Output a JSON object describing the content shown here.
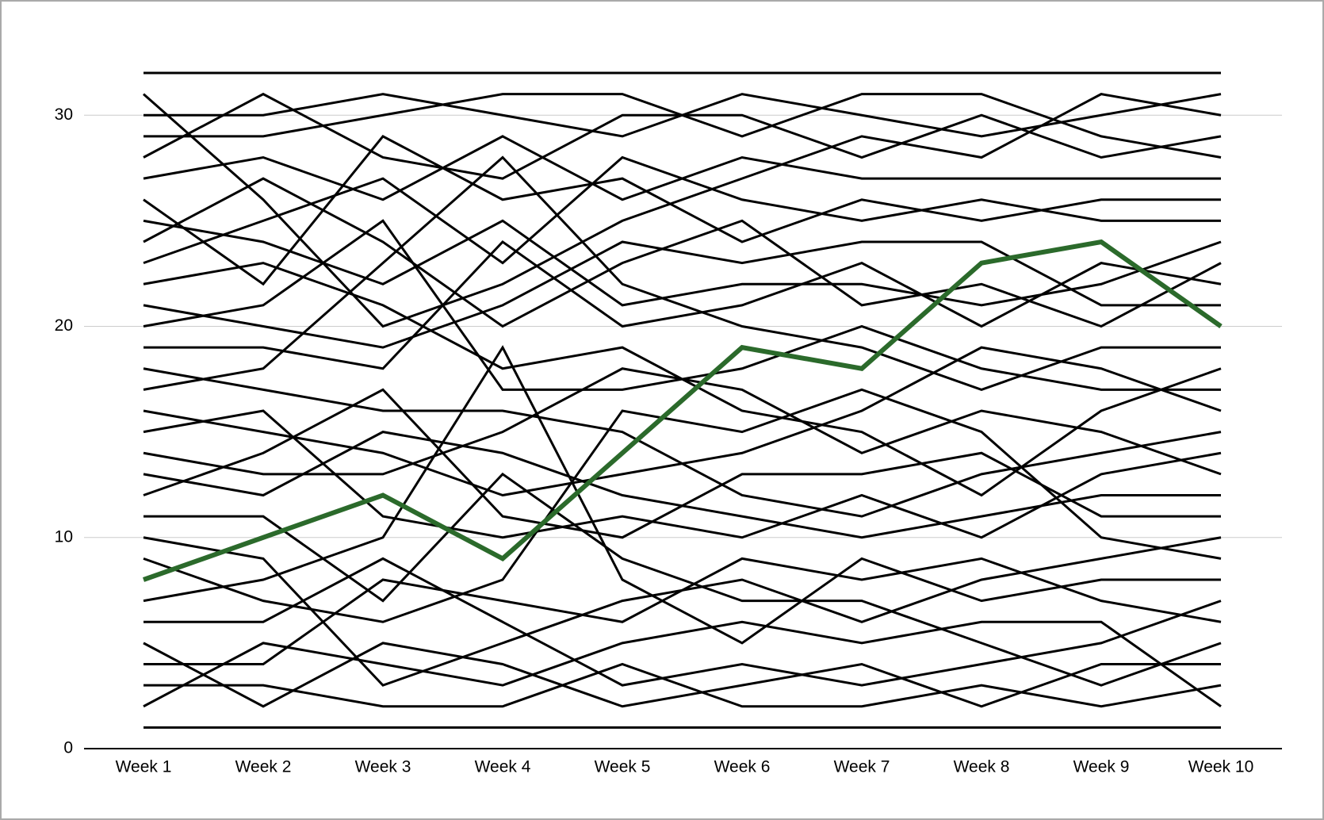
{
  "chart_data": {
    "type": "line",
    "categories": [
      "Week 1",
      "Week 2",
      "Week 3",
      "Week 4",
      "Week 5",
      "Week 6",
      "Week 7",
      "Week 8",
      "Week 9",
      "Week 10"
    ],
    "ylim": [
      0,
      32
    ],
    "yticks": [
      0,
      10,
      20,
      30
    ],
    "grid": true,
    "series": [
      {
        "color": "#000000",
        "values": [
          32,
          32,
          32,
          32,
          32,
          32,
          32,
          32,
          32,
          32
        ]
      },
      {
        "color": "#000000",
        "values": [
          31,
          26,
          20,
          22,
          25,
          27,
          29,
          28,
          31,
          30
        ]
      },
      {
        "color": "#000000",
        "values": [
          30,
          30,
          31,
          30,
          29,
          31,
          30,
          29,
          30,
          31
        ]
      },
      {
        "color": "#000000",
        "values": [
          29,
          29,
          30,
          31,
          31,
          29,
          31,
          31,
          29,
          28
        ]
      },
      {
        "color": "#000000",
        "values": [
          28,
          31,
          28,
          27,
          30,
          30,
          28,
          30,
          28,
          29
        ]
      },
      {
        "color": "#000000",
        "values": [
          27,
          28,
          26,
          29,
          26,
          28,
          27,
          27,
          27,
          27
        ]
      },
      {
        "color": "#000000",
        "values": [
          26,
          22,
          29,
          26,
          27,
          24,
          26,
          25,
          26,
          26
        ]
      },
      {
        "color": "#000000",
        "values": [
          25,
          24,
          22,
          25,
          21,
          22,
          22,
          21,
          22,
          24
        ]
      },
      {
        "color": "#000000",
        "values": [
          24,
          27,
          24,
          20,
          23,
          25,
          21,
          22,
          20,
          23
        ]
      },
      {
        "color": "#000000",
        "values": [
          23,
          25,
          27,
          23,
          28,
          26,
          25,
          26,
          25,
          25
        ]
      },
      {
        "color": "#000000",
        "values": [
          22,
          23,
          21,
          18,
          19,
          16,
          15,
          12,
          16,
          18
        ]
      },
      {
        "color": "#000000",
        "values": [
          21,
          20,
          19,
          21,
          24,
          23,
          24,
          24,
          21,
          21
        ]
      },
      {
        "color": "#000000",
        "values": [
          20,
          21,
          25,
          17,
          17,
          18,
          20,
          18,
          17,
          17
        ]
      },
      {
        "color": "#000000",
        "values": [
          19,
          19,
          18,
          24,
          20,
          21,
          23,
          20,
          23,
          22
        ]
      },
      {
        "color": "#000000",
        "values": [
          18,
          17,
          16,
          16,
          15,
          12,
          11,
          13,
          14,
          15
        ]
      },
      {
        "color": "#000000",
        "values": [
          17,
          18,
          23,
          28,
          22,
          20,
          19,
          17,
          19,
          19
        ]
      },
      {
        "color": "#000000",
        "values": [
          16,
          15,
          14,
          12,
          13,
          14,
          16,
          19,
          18,
          16
        ]
      },
      {
        "color": "#000000",
        "values": [
          15,
          16,
          11,
          10,
          11,
          10,
          12,
          10,
          13,
          14
        ]
      },
      {
        "color": "#000000",
        "values": [
          14,
          13,
          13,
          15,
          18,
          17,
          14,
          16,
          15,
          13
        ]
      },
      {
        "color": "#000000",
        "values": [
          13,
          12,
          15,
          14,
          12,
          11,
          10,
          11,
          12,
          12
        ]
      },
      {
        "color": "#000000",
        "values": [
          12,
          14,
          17,
          11,
          10,
          13,
          13,
          14,
          11,
          11
        ]
      },
      {
        "color": "#000000",
        "values": [
          11,
          11,
          7,
          13,
          9,
          7,
          7,
          5,
          3,
          5
        ]
      },
      {
        "color": "#000000",
        "values": [
          10,
          9,
          3,
          5,
          7,
          8,
          6,
          8,
          9,
          10
        ]
      },
      {
        "color": "#000000",
        "values": [
          9,
          7,
          6,
          8,
          16,
          15,
          17,
          15,
          10,
          9
        ]
      },
      {
        "color": "#000000",
        "values": [
          7,
          8,
          10,
          19,
          8,
          5,
          9,
          7,
          8,
          8
        ]
      },
      {
        "color": "#000000",
        "values": [
          6,
          6,
          9,
          6,
          3,
          4,
          3,
          4,
          5,
          7
        ]
      },
      {
        "color": "#000000",
        "values": [
          5,
          2,
          5,
          4,
          2,
          3,
          4,
          2,
          4,
          4
        ]
      },
      {
        "color": "#000000",
        "values": [
          4,
          4,
          8,
          7,
          6,
          9,
          8,
          9,
          7,
          6
        ]
      },
      {
        "color": "#000000",
        "values": [
          3,
          3,
          2,
          2,
          4,
          2,
          2,
          3,
          2,
          3
        ]
      },
      {
        "color": "#000000",
        "values": [
          2,
          5,
          4,
          3,
          5,
          6,
          5,
          6,
          6,
          2
        ]
      },
      {
        "color": "#000000",
        "values": [
          1,
          1,
          1,
          1,
          1,
          1,
          1,
          1,
          1,
          1
        ]
      },
      {
        "color": "#2b6a2b",
        "values": [
          8,
          10,
          12,
          9,
          14,
          19,
          18,
          23,
          24,
          20
        ]
      }
    ]
  }
}
